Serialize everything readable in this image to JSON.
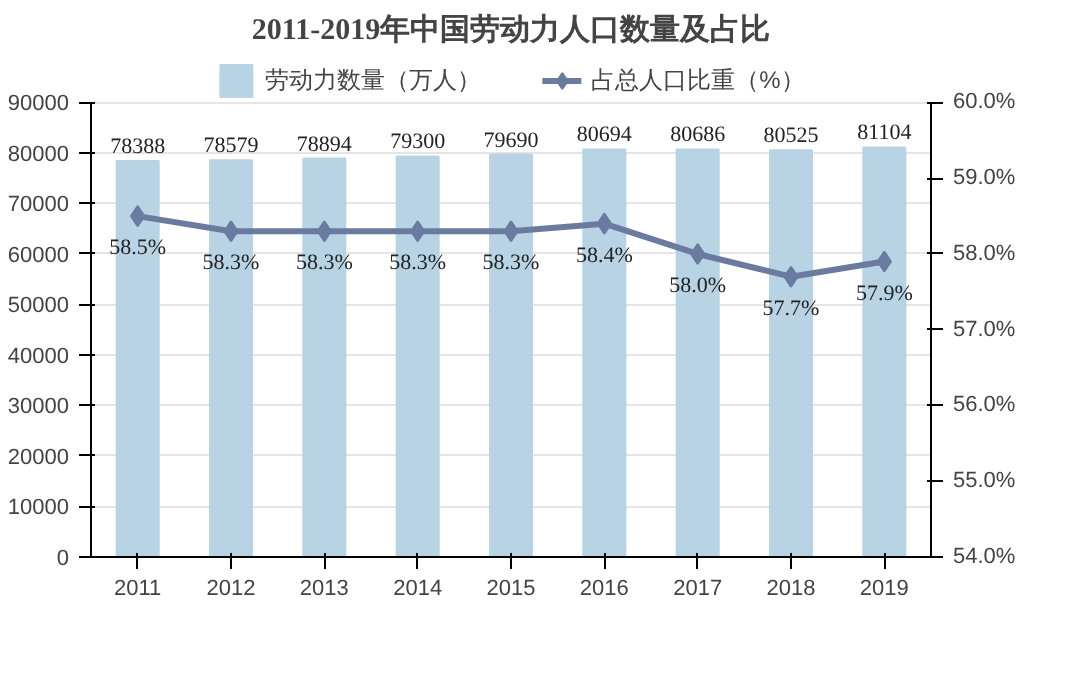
{
  "chart_data": {
    "type": "bar",
    "title": "2011-2019年中国劳动力人口数量及占比",
    "categories": [
      "2011",
      "2012",
      "2013",
      "2014",
      "2015",
      "2016",
      "2017",
      "2018",
      "2019"
    ],
    "series": [
      {
        "name": "劳动力数量（万人）",
        "color": "#b7d3e4",
        "values": [
          78388,
          78579,
          78894,
          79300,
          79690,
          80694,
          80686,
          80525,
          81104
        ]
      },
      {
        "name": "占总人口比重（%）",
        "type": "line",
        "axis": "y2",
        "color": "#6b7ba0",
        "marker": "diamond",
        "values": [
          58.5,
          58.3,
          58.3,
          58.3,
          58.3,
          58.4,
          58.0,
          57.7,
          57.9
        ],
        "value_labels": [
          "58.5%",
          "58.3%",
          "58.3%",
          "58.3%",
          "58.3%",
          "58.4%",
          "58.0%",
          "57.7%",
          "57.9%"
        ]
      }
    ],
    "ylim": [
      0,
      90000
    ],
    "yticks": [
      0,
      10000,
      20000,
      30000,
      40000,
      50000,
      60000,
      70000,
      80000,
      90000
    ],
    "y2lim": [
      54,
      60
    ],
    "y2ticks": [
      {
        "value": 54,
        "label": "54.0%"
      },
      {
        "value": 55,
        "label": "55.0%"
      },
      {
        "value": 56,
        "label": "56.0%"
      },
      {
        "value": 57,
        "label": "57.0%"
      },
      {
        "value": 58,
        "label": "58.0%"
      },
      {
        "value": 59,
        "label": "59.0%"
      },
      {
        "value": 60,
        "label": "60.0%"
      }
    ],
    "data_labels": true,
    "grid": "y",
    "legend": "top"
  }
}
